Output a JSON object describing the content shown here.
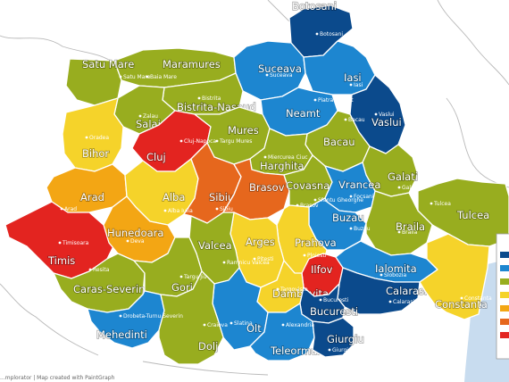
{
  "palette": {
    "navy": "#0b4a8c",
    "blue": "#1d86d0",
    "olive": "#98ad1f",
    "yellow": "#f5d32a",
    "orange": "#f3a614",
    "dark_orange": "#e6671d",
    "red": "#e32420",
    "water": "#c8dcef"
  },
  "counties": [
    {
      "name": "Botosani",
      "city": "Botosani",
      "color": "navy"
    },
    {
      "name": "Maramures",
      "city": "Baia Mare",
      "color": "olive"
    },
    {
      "name": "Satu Mare",
      "city": "Satu Mare",
      "color": "olive"
    },
    {
      "name": "Suceava",
      "city": "Suceava",
      "color": "blue"
    },
    {
      "name": "Iasi",
      "city": "Iasi",
      "color": "blue"
    },
    {
      "name": "Bistrita-Nasaud",
      "city": "Bistrita",
      "color": "olive"
    },
    {
      "name": "Salaj",
      "city": "Zalau",
      "color": "olive"
    },
    {
      "name": "Neamt",
      "city": "Piatra-Neamt",
      "color": "blue"
    },
    {
      "name": "Vaslui",
      "city": "Vaslui",
      "color": "navy"
    },
    {
      "name": "Bihor",
      "city": "Oradea",
      "color": "yellow"
    },
    {
      "name": "Cluj",
      "city": "Cluj-Napoca",
      "color": "red"
    },
    {
      "name": "Mures",
      "city": "Targu Mures",
      "color": "olive"
    },
    {
      "name": "Bacau",
      "city": "Bacau",
      "color": "olive"
    },
    {
      "name": "Harghita",
      "city": "Miercurea Ciuc",
      "color": "olive"
    },
    {
      "name": "Galati",
      "city": "Galati",
      "color": "olive"
    },
    {
      "name": "Arad",
      "city": "Arad",
      "color": "orange"
    },
    {
      "name": "Alba",
      "city": "Alba Iulia",
      "color": "yellow"
    },
    {
      "name": "Sibiu",
      "city": "Sibiu",
      "color": "dark_orange"
    },
    {
      "name": "Brasov",
      "city": "Brasov",
      "color": "dark_orange"
    },
    {
      "name": "Covasna",
      "city": "Sfantu Gheorghe",
      "color": "olive"
    },
    {
      "name": "Vrancea",
      "city": "Focsani",
      "color": "blue"
    },
    {
      "name": "Tulcea",
      "city": "Tulcea",
      "color": "olive"
    },
    {
      "name": "Timis",
      "city": "Timisoara",
      "color": "red"
    },
    {
      "name": "Hunedoara",
      "city": "Deva",
      "color": "orange"
    },
    {
      "name": "Buzau",
      "city": "Buzau",
      "color": "blue"
    },
    {
      "name": "Braila",
      "city": "Braila",
      "color": "olive"
    },
    {
      "name": "Prahova",
      "city": "Ploiesti",
      "color": "yellow"
    },
    {
      "name": "Arges",
      "city": "Pitesti",
      "color": "yellow"
    },
    {
      "name": "Valcea",
      "city": "Ramnicu Valcea",
      "color": "olive"
    },
    {
      "name": "Caras-Severin",
      "city": "Resita",
      "color": "olive"
    },
    {
      "name": "Gorj",
      "city": "Targu Jiu",
      "color": "olive"
    },
    {
      "name": "Ilfov",
      "city": "",
      "color": "red"
    },
    {
      "name": "Ialomita",
      "city": "Slobozia",
      "color": "blue"
    },
    {
      "name": "Calarasi",
      "city": "Calarasi",
      "color": "navy"
    },
    {
      "name": "Constanta",
      "city": "Constanta",
      "color": "yellow"
    },
    {
      "name": "Dambovita",
      "city": "Targoviste",
      "color": "yellow"
    },
    {
      "name": "Bucuresti",
      "city": "Bucuresti",
      "color": "navy"
    },
    {
      "name": "Mehedinti",
      "city": "Drobeta-Turnu Severin",
      "color": "blue"
    },
    {
      "name": "Olt",
      "city": "Slatina",
      "color": "blue"
    },
    {
      "name": "Dolj",
      "city": "Craiova",
      "color": "olive"
    },
    {
      "name": "Teleorman",
      "city": "Alexandria",
      "color": "blue"
    },
    {
      "name": "Giurgiu",
      "city": "Giurgiu",
      "color": "navy"
    }
  ],
  "legend": {
    "swatches": [
      "navy",
      "blue",
      "olive",
      "yellow",
      "orange",
      "dark_orange",
      "red"
    ]
  },
  "footer": {
    "credit": "...mplorator | Map created with PaintGraph"
  }
}
